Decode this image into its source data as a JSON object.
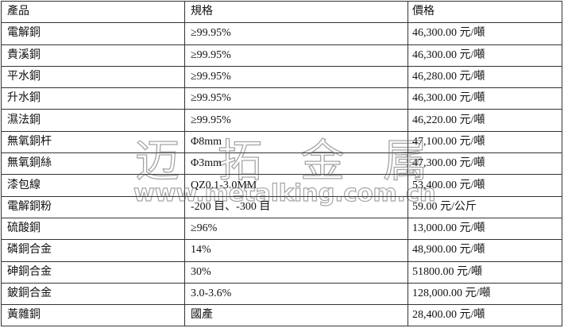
{
  "headers": [
    "產品",
    "規格",
    "價格"
  ],
  "rows": [
    [
      "電解銅",
      "≥99.95%",
      "46,300.00 元/噸"
    ],
    [
      "貴溪銅",
      "≥99.95%",
      "46,300.00 元/噸"
    ],
    [
      "平水銅",
      "≥99.95%",
      "46,280.00 元/噸"
    ],
    [
      "升水銅",
      "≥99.95%",
      "46,300.00 元/噸"
    ],
    [
      "濕法銅",
      "≥99.95%",
      "46,220.00 元/噸"
    ],
    [
      "無氧銅杆",
      "Φ8mm",
      "47,100.00 元/噸"
    ],
    [
      "無氧銅絲",
      "Φ3mm",
      "47,300.00 元/噸"
    ],
    [
      "漆包線",
      "QZ0.1-3.0MM",
      "53,400.00 元/噸"
    ],
    [
      "電解銅粉",
      "-200 目、-300 目",
      "59.00 元/公斤"
    ],
    [
      "硫酸銅",
      "≥96%",
      "13,000.00 元/噸"
    ],
    [
      "磷銅合金",
      "14%",
      "48,900.00 元/噸"
    ],
    [
      "砷銅合金",
      "30%",
      "51800.00 元/噸"
    ],
    [
      "鈹銅合金",
      "3.0-3.6%",
      "128,000.00 元/噸"
    ],
    [
      "黃雜銅",
      "國產",
      "28,400.00 元/噸"
    ]
  ],
  "watermark": {
    "name": "迈拓金属",
    "url": "www.metalking.com.cn"
  }
}
